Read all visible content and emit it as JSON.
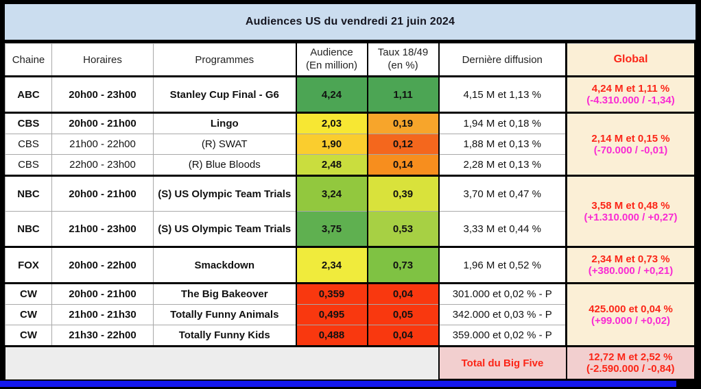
{
  "title": "Audiences US du vendredi 21 juin 2024",
  "columns": [
    {
      "label": "Chaine"
    },
    {
      "label": "Horaires"
    },
    {
      "label": "Programmes"
    },
    {
      "label": "Audience",
      "label2": "(En million)"
    },
    {
      "label": "Taux 18/49",
      "label2": "(en %)"
    },
    {
      "label": "Dernière diffusion"
    },
    {
      "label": "Global"
    }
  ],
  "colors": {
    "title_bg": "#CBDDEF",
    "global_bg": "#FBEFD6",
    "red_text": "#FB2517",
    "magenta_text": "#F92AD3",
    "footer_pink": "#F2CFCF",
    "footer_gray": "#EDEDED",
    "blue_bar": "#1418EE",
    "border_black": "#000000",
    "border_gray": "#A8A8A8"
  },
  "groups": [
    {
      "row_height": "tall",
      "rows": [
        {
          "channel": "ABC",
          "time": "20h00 - 23h00",
          "program": "Stanley Cup Final - G6",
          "bold": true,
          "audience": "4,24",
          "audience_color": "#4CA554",
          "rating": "1,11",
          "rating_color": "#4CA554",
          "last": "4,15 M et 1,13 %"
        }
      ],
      "global": {
        "line1": "4,24 M et 1,11 %",
        "line2": "(-4.310.000 / -1,34)"
      }
    },
    {
      "row_height": "short",
      "rows": [
        {
          "channel": "CBS",
          "time": "20h00 - 21h00",
          "program": "Lingo",
          "bold": true,
          "audience": "2,03",
          "audience_color": "#F7E733",
          "rating": "0,19",
          "rating_color": "#F7A52B",
          "last": "1,94 M et 0,18 %"
        },
        {
          "channel": "CBS",
          "time": "21h00 - 22h00",
          "program": "(R) SWAT",
          "bold": false,
          "audience": "1,90",
          "audience_color": "#FACD2E",
          "rating": "0,12",
          "rating_color": "#F4671D",
          "last": "1,88 M et 0,13 %"
        },
        {
          "channel": "CBS",
          "time": "22h00 - 23h00",
          "program": "(R) Blue Bloods",
          "bold": false,
          "audience": "2,48",
          "audience_color": "#CADD3E",
          "rating": "0,14",
          "rating_color": "#F78E1E",
          "last": "2,28 M et 0,13 %"
        }
      ],
      "global": {
        "line1": "2,14 M et 0,15 %",
        "line2": "(-70.000 / -0,01)"
      }
    },
    {
      "row_height": "tall",
      "rows": [
        {
          "channel": "NBC",
          "time": "20h00 - 21h00",
          "program": "(S) US Olympic Team Trials",
          "bold": true,
          "audience": "3,24",
          "audience_color": "#92C83E",
          "rating": "0,39",
          "rating_color": "#D9E23B",
          "last": "3,70 M et 0,47 %"
        },
        {
          "channel": "NBC",
          "time": "21h00 - 23h00",
          "program": "(S) US Olympic Team Trials",
          "bold": true,
          "audience": "3,75",
          "audience_color": "#5FB050",
          "rating": "0,53",
          "rating_color": "#A7D044",
          "last": "3,33 M et 0,44 %"
        }
      ],
      "global": {
        "line1": "3,58 M et 0,48 %",
        "line2": "(+1.310.000 / +0,27)"
      }
    },
    {
      "row_height": "tall",
      "rows": [
        {
          "channel": "FOX",
          "time": "20h00 - 22h00",
          "program": "Smackdown",
          "bold": true,
          "audience": "2,34",
          "audience_color": "#F0EB3C",
          "rating": "0,73",
          "rating_color": "#7FC243",
          "last": "1,96 M et 0,52 %"
        }
      ],
      "global": {
        "line1": "2,34 M et 0,73 %",
        "line2": "(+380.000 / +0,21)"
      }
    },
    {
      "row_height": "short",
      "rows": [
        {
          "channel": "CW",
          "time": "20h00 - 21h00",
          "program": "The Big Bakeover",
          "bold": true,
          "audience": "0,359",
          "audience_color": "#F9380F",
          "rating": "0,04",
          "rating_color": "#F9380F",
          "last": "301.000 et 0,02 % - P"
        },
        {
          "channel": "CW",
          "time": "21h00 - 21h30",
          "program": "Totally Funny Animals",
          "bold": true,
          "audience": "0,495",
          "audience_color": "#F9380F",
          "rating": "0,05",
          "rating_color": "#F9380F",
          "last": "342.000 et 0,03 % - P"
        },
        {
          "channel": "CW",
          "time": "21h30 - 22h00",
          "program": "Totally Funny Kids",
          "bold": true,
          "audience": "0,488",
          "audience_color": "#F9380F",
          "rating": "0,04",
          "rating_color": "#F9380F",
          "last": "359.000 et 0,02 % - P"
        }
      ],
      "global": {
        "line1": "425.000 et 0,04 %",
        "line2": "(+99.000 / +0,02)"
      }
    }
  ],
  "footer": {
    "label": "Total du Big Five",
    "line1": "12,72 M et 2,52 %",
    "line2": "(-2.590.000 / -0,84)"
  },
  "chart_data": {
    "type": "table",
    "title": "Audiences US du vendredi 21 juin 2024",
    "columns": [
      "Chaine",
      "Horaires",
      "Programmes",
      "Audience (En million)",
      "Taux 18/49 (en %)",
      "Dernière diffusion",
      "Global"
    ],
    "rows": [
      [
        "ABC",
        "20h00 - 23h00",
        "Stanley Cup Final - G6",
        4.24,
        1.11,
        "4,15 M et 1,13 %",
        "4,24 M et 1,11 % (-4.310.000 / -1,34)"
      ],
      [
        "CBS",
        "20h00 - 21h00",
        "Lingo",
        2.03,
        0.19,
        "1,94 M et 0,18 %",
        "2,14 M et 0,15 % (-70.000 / -0,01)"
      ],
      [
        "CBS",
        "21h00 - 22h00",
        "(R) SWAT",
        1.9,
        0.12,
        "1,88 M et 0,13 %",
        "2,14 M et 0,15 % (-70.000 / -0,01)"
      ],
      [
        "CBS",
        "22h00 - 23h00",
        "(R) Blue Bloods",
        2.48,
        0.14,
        "2,28 M et 0,13 %",
        "2,14 M et 0,15 % (-70.000 / -0,01)"
      ],
      [
        "NBC",
        "20h00 - 21h00",
        "(S) US Olympic Team Trials",
        3.24,
        0.39,
        "3,70 M et 0,47 %",
        "3,58 M et 0,48 % (+1.310.000 / +0,27)"
      ],
      [
        "NBC",
        "21h00 - 23h00",
        "(S) US Olympic Team Trials",
        3.75,
        0.53,
        "3,33 M et 0,44 %",
        "3,58 M et 0,48 % (+1.310.000 / +0,27)"
      ],
      [
        "FOX",
        "20h00 - 22h00",
        "Smackdown",
        2.34,
        0.73,
        "1,96 M et 0,52 %",
        "2,34 M et 0,73 % (+380.000 / +0,21)"
      ],
      [
        "CW",
        "20h00 - 21h00",
        "The Big Bakeover",
        0.359,
        0.04,
        "301.000 et 0,02 % - P",
        "425.000 et 0,04 % (+99.000 / +0,02)"
      ],
      [
        "CW",
        "21h00 - 21h30",
        "Totally Funny Animals",
        0.495,
        0.05,
        "342.000 et 0,03 % - P",
        "425.000 et 0,04 % (+99.000 / +0,02)"
      ],
      [
        "CW",
        "21h30 - 22h00",
        "Totally Funny Kids",
        0.488,
        0.04,
        "359.000 et 0,02 % - P",
        "425.000 et 0,04 % (+99.000 / +0,02)"
      ]
    ],
    "totals_row": [
      "Total du Big Five",
      "12,72 M et 2,52 % (-2.590.000 / -0,84)"
    ]
  }
}
